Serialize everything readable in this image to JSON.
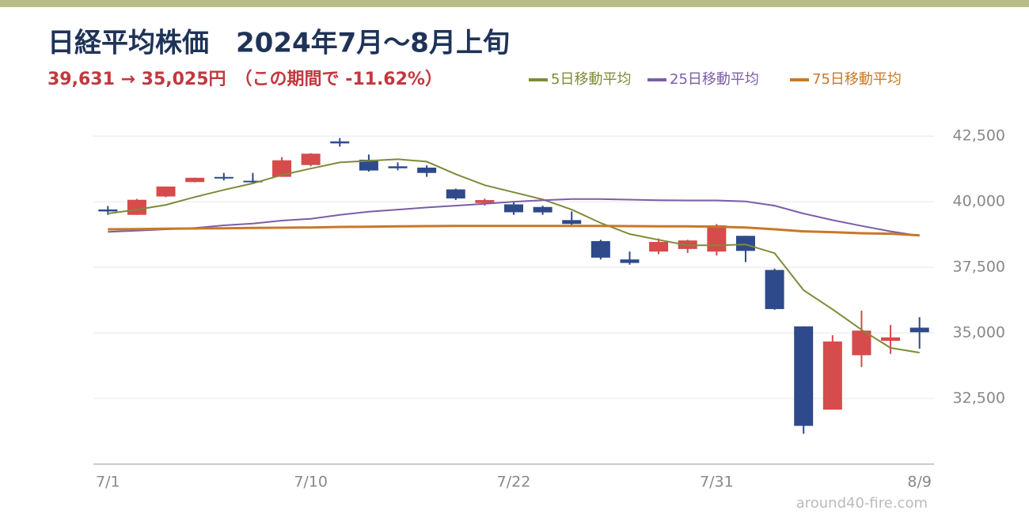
{
  "chart_data": {
    "type": "candlestick",
    "title": "日経平均株価　2024年7月〜8月上旬",
    "subtitle": "39,631 → 35,025円　（この期間で -11.62%）",
    "watermark": "around40-fire.com",
    "categories": [
      "7/1",
      null,
      null,
      null,
      null,
      null,
      null,
      "7/10",
      null,
      null,
      null,
      null,
      null,
      null,
      "7/22",
      null,
      null,
      null,
      null,
      null,
      null,
      "7/31",
      null,
      null,
      null,
      null,
      null,
      null,
      "8/9"
    ],
    "open": [
      39705,
      39500,
      40200,
      40750,
      40945,
      40800,
      40950,
      41400,
      42300,
      41600,
      41350,
      41300,
      40470,
      39950,
      39900,
      39800,
      39300,
      38500,
      37800,
      38100,
      38200,
      38100,
      38700,
      37400,
      35250,
      32077,
      34150,
      34700,
      35200
    ],
    "high": [
      39837,
      40109,
      40580,
      40914,
      41100,
      41100,
      41700,
      41852,
      42426,
      41800,
      41500,
      41390,
      40500,
      40120,
      39970,
      39850,
      39630,
      38550,
      38100,
      38600,
      38550,
      39150,
      38700,
      37450,
      35250,
      34911,
      35850,
      35300,
      35600
    ],
    "low": [
      39500,
      39500,
      40170,
      40738,
      40810,
      40720,
      40950,
      41350,
      42100,
      41150,
      41200,
      40950,
      40065,
      39850,
      39500,
      39500,
      39100,
      37800,
      37600,
      38000,
      38050,
      37950,
      37700,
      35880,
      31156,
      32077,
      33700,
      34200,
      34400
    ],
    "close": [
      39631,
      40074,
      40580,
      40913,
      40912,
      40780,
      41580,
      41831,
      42224,
      41190,
      41275,
      41097,
      40126,
      40063,
      39599,
      39594,
      39155,
      37869,
      37667,
      38468,
      38525,
      39101,
      38126,
      35909,
      31458,
      34675,
      35089,
      34831,
      35025
    ],
    "up_color": "#d64b4b",
    "down_color": "#2e4a8a",
    "series": [
      {
        "name": "5日移動平均",
        "color": "#7f8a3a",
        "values": [
          39550,
          39700,
          39880,
          40180,
          40450,
          40700,
          41020,
          41265,
          41500,
          41560,
          41620,
          41530,
          41050,
          40630,
          40360,
          40090,
          39700,
          39190,
          38770,
          38550,
          38340,
          38340,
          38370,
          38040,
          36630,
          35900,
          35120,
          34430,
          34250
        ]
      },
      {
        "name": "25日移動平均",
        "color": "#7b5ea7",
        "values": [
          38850,
          38900,
          38950,
          39000,
          39100,
          39170,
          39280,
          39350,
          39500,
          39620,
          39700,
          39780,
          39850,
          39920,
          40000,
          40060,
          40100,
          40100,
          40080,
          40060,
          40050,
          40050,
          40010,
          39850,
          39550,
          39300,
          39080,
          38870,
          38700
        ]
      },
      {
        "name": "75日移動平均",
        "color": "#c87828",
        "values": [
          38950,
          38960,
          38970,
          38980,
          38990,
          39000,
          39010,
          39020,
          39040,
          39050,
          39060,
          39070,
          39080,
          39080,
          39080,
          39080,
          39080,
          39080,
          39070,
          39060,
          39060,
          39050,
          39020,
          38950,
          38870,
          38840,
          38800,
          38780,
          38720
        ]
      }
    ],
    "ylim": [
      30000,
      43500
    ],
    "yticks": [
      {
        "value": 32500,
        "label": "32,500"
      },
      {
        "value": 35000,
        "label": "35,000"
      },
      {
        "value": 37500,
        "label": "37,500"
      },
      {
        "value": 40000,
        "label": "40,000"
      },
      {
        "value": 42500,
        "label": "42,500"
      }
    ],
    "grid": true
  }
}
